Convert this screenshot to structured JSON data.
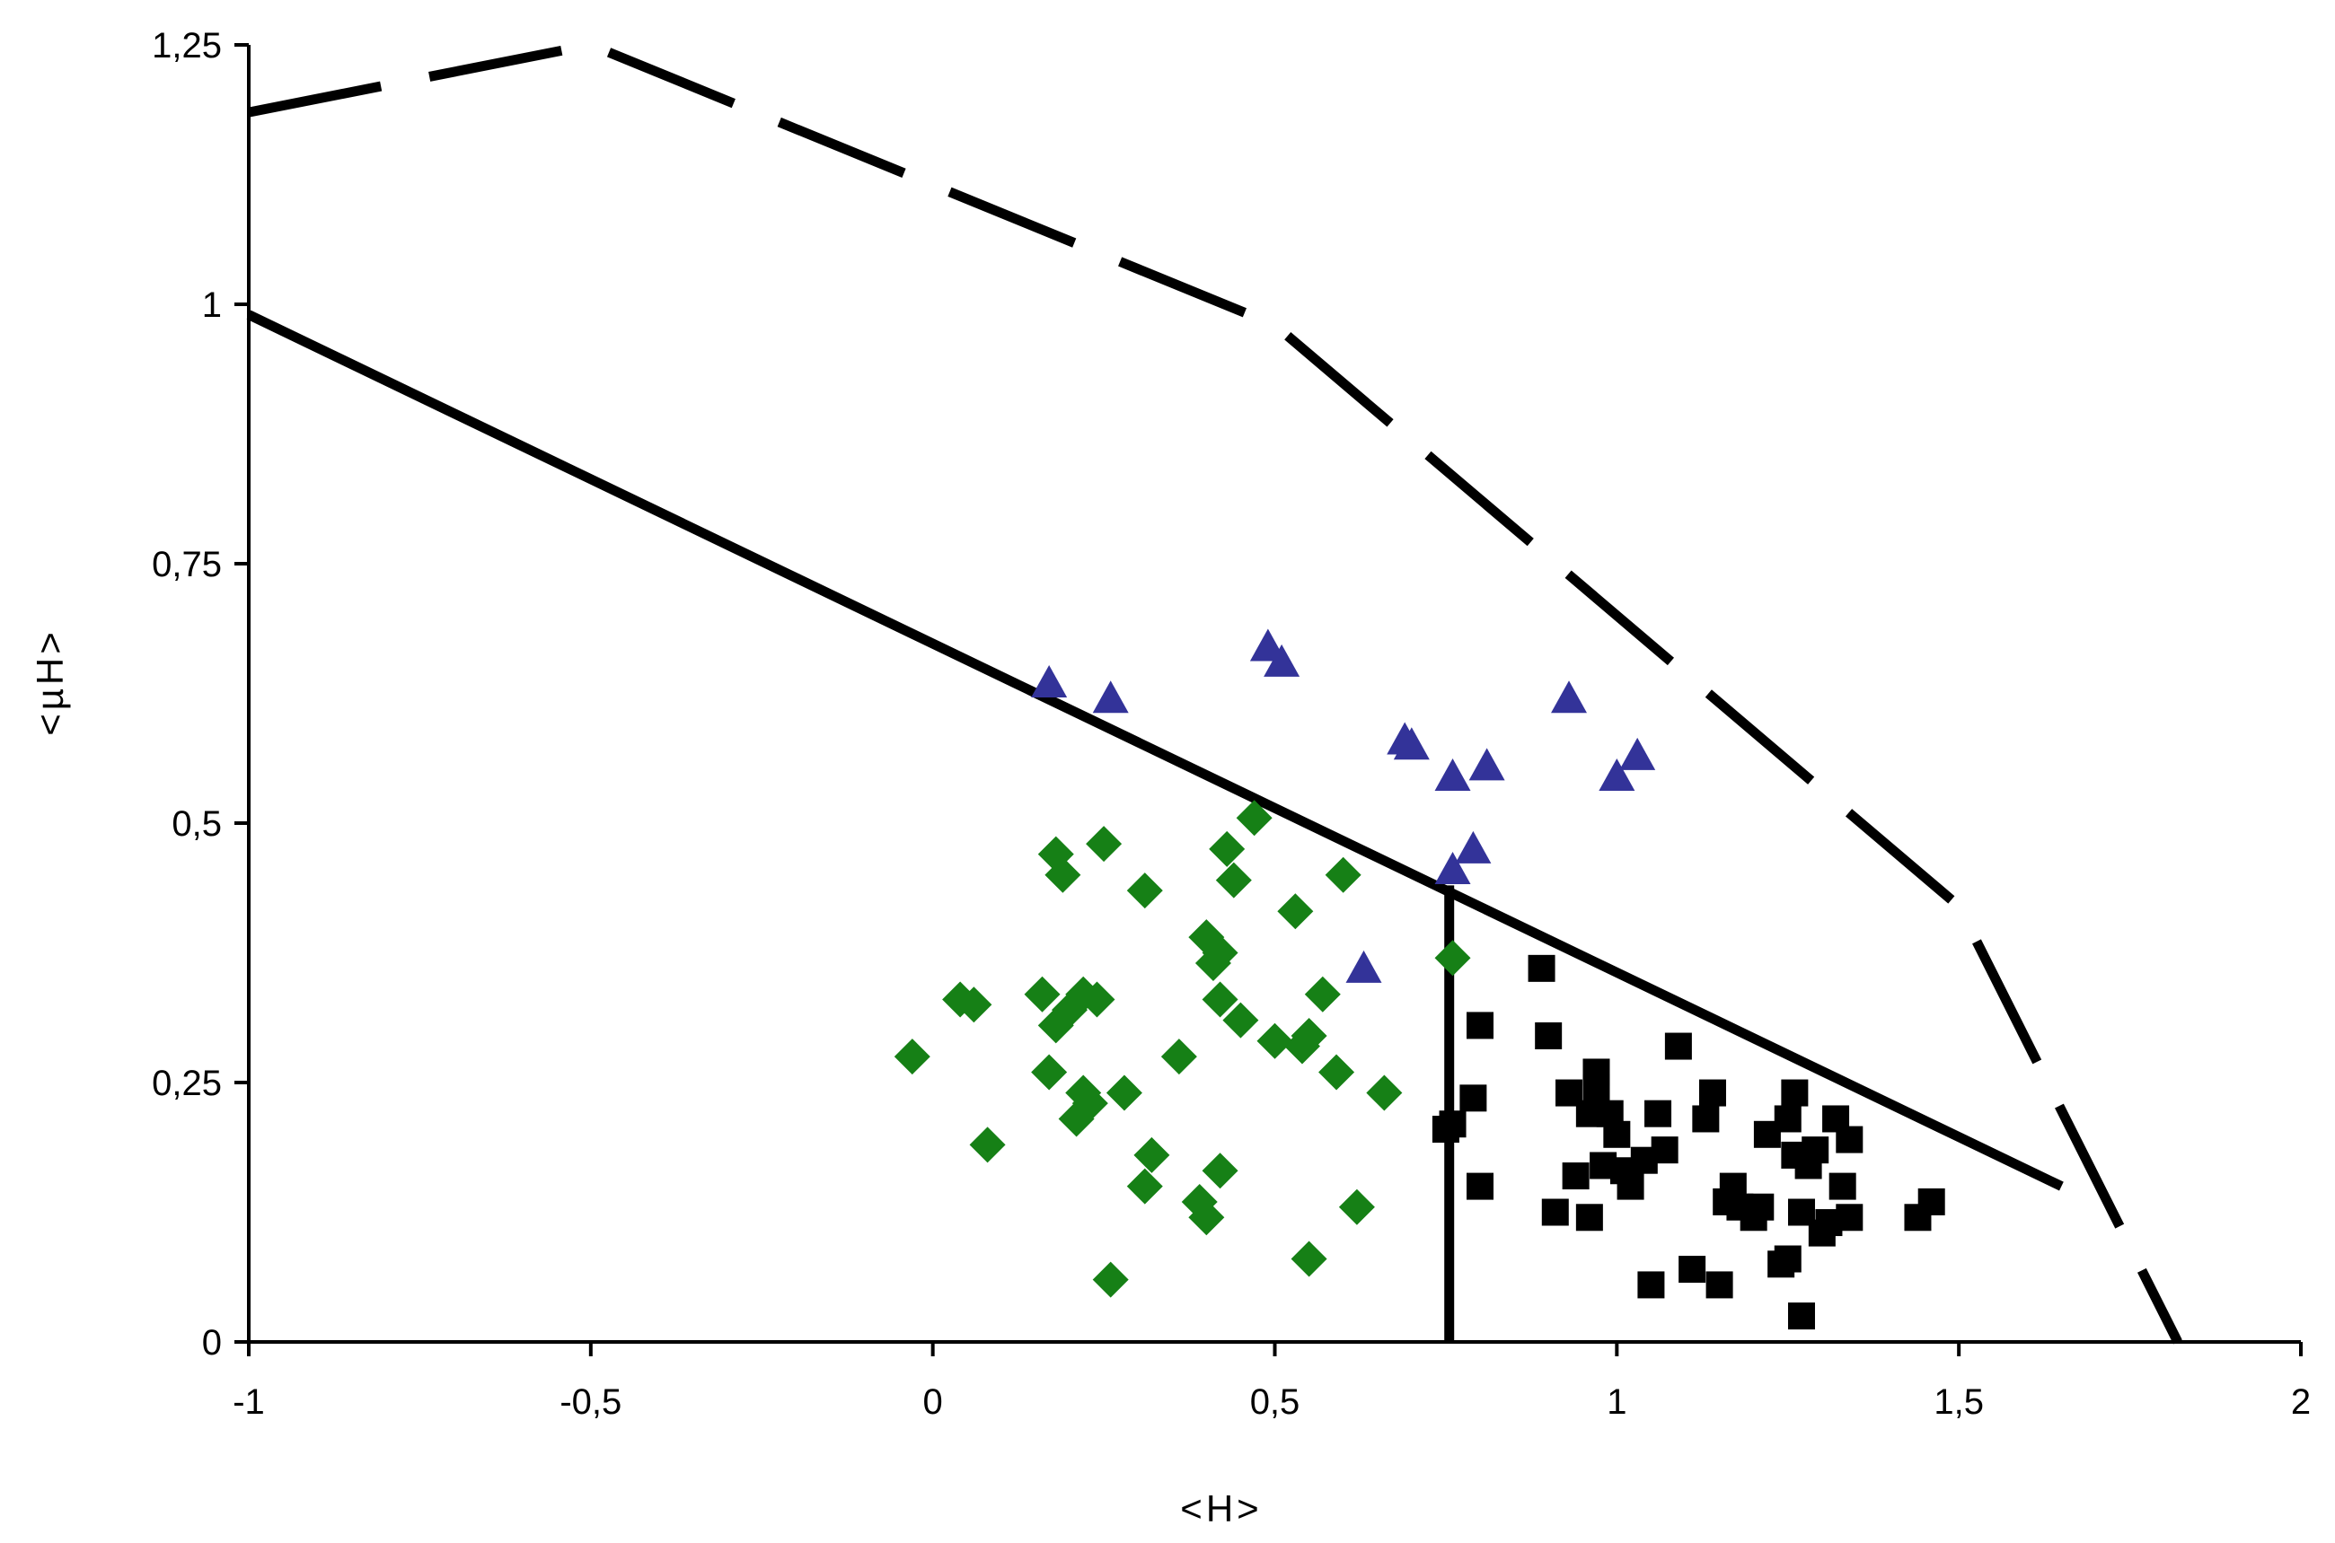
{
  "chart_data": {
    "type": "scatter",
    "title": "",
    "xlabel": "<H>",
    "ylabel": "<µH>",
    "xlim": [
      -1,
      2
    ],
    "ylim": [
      0,
      1.25
    ],
    "x_ticks": [
      -1,
      -0.5,
      0,
      0.5,
      1,
      1.5,
      2
    ],
    "x_tick_labels": [
      "-1",
      "-0,5",
      "0",
      "0,5",
      "1",
      "1,5",
      "2"
    ],
    "y_ticks": [
      0,
      0.25,
      0.5,
      0.75,
      1,
      1.25
    ],
    "y_tick_labels": [
      "0",
      "0,25",
      "0,5",
      "0,75",
      "1",
      "1,25"
    ],
    "grid": false,
    "colors": {
      "triangles": "#333399",
      "diamonds": "#168016",
      "squares": "#000000",
      "lines": "#000000"
    },
    "series": [
      {
        "marker": "triangle",
        "points": [
          [
            0.17,
            0.635
          ],
          [
            0.26,
            0.62
          ],
          [
            0.49,
            0.67
          ],
          [
            0.51,
            0.655
          ],
          [
            0.69,
            0.58
          ],
          [
            0.7,
            0.575
          ],
          [
            0.76,
            0.545
          ],
          [
            0.81,
            0.555
          ],
          [
            0.93,
            0.62
          ],
          [
            1.0,
            0.545
          ],
          [
            1.03,
            0.565
          ],
          [
            0.76,
            0.455
          ],
          [
            0.79,
            0.475
          ],
          [
            0.63,
            0.36
          ]
        ]
      },
      {
        "marker": "diamond",
        "points": [
          [
            -0.03,
            0.275
          ],
          [
            0.04,
            0.33
          ],
          [
            0.06,
            0.325
          ],
          [
            0.08,
            0.19
          ],
          [
            0.16,
            0.335
          ],
          [
            0.17,
            0.26
          ],
          [
            0.18,
            0.305
          ],
          [
            0.18,
            0.47
          ],
          [
            0.19,
            0.45
          ],
          [
            0.2,
            0.32
          ],
          [
            0.21,
            0.215
          ],
          [
            0.22,
            0.335
          ],
          [
            0.22,
            0.24
          ],
          [
            0.23,
            0.23
          ],
          [
            0.24,
            0.33
          ],
          [
            0.25,
            0.48
          ],
          [
            0.28,
            0.24
          ],
          [
            0.31,
            0.435
          ],
          [
            0.31,
            0.15
          ],
          [
            0.32,
            0.18
          ],
          [
            0.26,
            0.06
          ],
          [
            0.36,
            0.275
          ],
          [
            0.39,
            0.135
          ],
          [
            0.4,
            0.12
          ],
          [
            0.4,
            0.39
          ],
          [
            0.41,
            0.365
          ],
          [
            0.42,
            0.375
          ],
          [
            0.42,
            0.33
          ],
          [
            0.43,
            0.475
          ],
          [
            0.44,
            0.445
          ],
          [
            0.45,
            0.31
          ],
          [
            0.47,
            0.505
          ],
          [
            0.5,
            0.29
          ],
          [
            0.53,
            0.415
          ],
          [
            0.54,
            0.285
          ],
          [
            0.55,
            0.295
          ],
          [
            0.55,
            0.08
          ],
          [
            0.57,
            0.335
          ],
          [
            0.59,
            0.26
          ],
          [
            0.6,
            0.45
          ],
          [
            0.62,
            0.13
          ],
          [
            0.66,
            0.24
          ],
          [
            0.42,
            0.165
          ],
          [
            0.76,
            0.37
          ]
        ]
      },
      {
        "marker": "square",
        "points": [
          [
            0.75,
            0.205
          ],
          [
            0.76,
            0.21
          ],
          [
            0.79,
            0.235
          ],
          [
            0.8,
            0.305
          ],
          [
            0.8,
            0.15
          ],
          [
            0.89,
            0.36
          ],
          [
            0.9,
            0.295
          ],
          [
            0.91,
            0.125
          ],
          [
            0.93,
            0.24
          ],
          [
            0.94,
            0.16
          ],
          [
            0.96,
            0.12
          ],
          [
            0.96,
            0.22
          ],
          [
            0.97,
            0.26
          ],
          [
            0.97,
            0.245
          ],
          [
            0.98,
            0.17
          ],
          [
            0.99,
            0.22
          ],
          [
            1.0,
            0.2
          ],
          [
            1.01,
            0.165
          ],
          [
            1.02,
            0.15
          ],
          [
            1.04,
            0.175
          ],
          [
            1.05,
            0.055
          ],
          [
            1.06,
            0.22
          ],
          [
            1.07,
            0.185
          ],
          [
            1.09,
            0.285
          ],
          [
            1.11,
            0.07
          ],
          [
            1.13,
            0.215
          ],
          [
            1.14,
            0.24
          ],
          [
            1.15,
            0.055
          ],
          [
            1.16,
            0.135
          ],
          [
            1.17,
            0.15
          ],
          [
            1.18,
            0.13
          ],
          [
            1.2,
            0.12
          ],
          [
            1.21,
            0.13
          ],
          [
            1.22,
            0.2
          ],
          [
            1.24,
            0.075
          ],
          [
            1.25,
            0.08
          ],
          [
            1.25,
            0.215
          ],
          [
            1.26,
            0.18
          ],
          [
            1.26,
            0.24
          ],
          [
            1.27,
            0.125
          ],
          [
            1.27,
            0.025
          ],
          [
            1.28,
            0.17
          ],
          [
            1.29,
            0.185
          ],
          [
            1.3,
            0.105
          ],
          [
            1.31,
            0.115
          ],
          [
            1.32,
            0.215
          ],
          [
            1.33,
            0.15
          ],
          [
            1.34,
            0.195
          ],
          [
            1.34,
            0.12
          ],
          [
            1.44,
            0.12
          ],
          [
            1.46,
            0.135
          ]
        ]
      }
    ],
    "lines": [
      {
        "style": "dashed",
        "points": [
          [
            -1,
            1.185
          ],
          [
            -0.5,
            1.25
          ],
          [
            0.5,
            0.98
          ],
          [
            1.5,
            0.42
          ],
          [
            1.82,
            0
          ]
        ]
      },
      {
        "style": "solid",
        "points": [
          [
            -1,
            0.99
          ],
          [
            1.65,
            0.15
          ]
        ]
      },
      {
        "style": "solid",
        "points": [
          [
            0.755,
            0
          ],
          [
            0.755,
            0.44
          ]
        ]
      }
    ]
  }
}
